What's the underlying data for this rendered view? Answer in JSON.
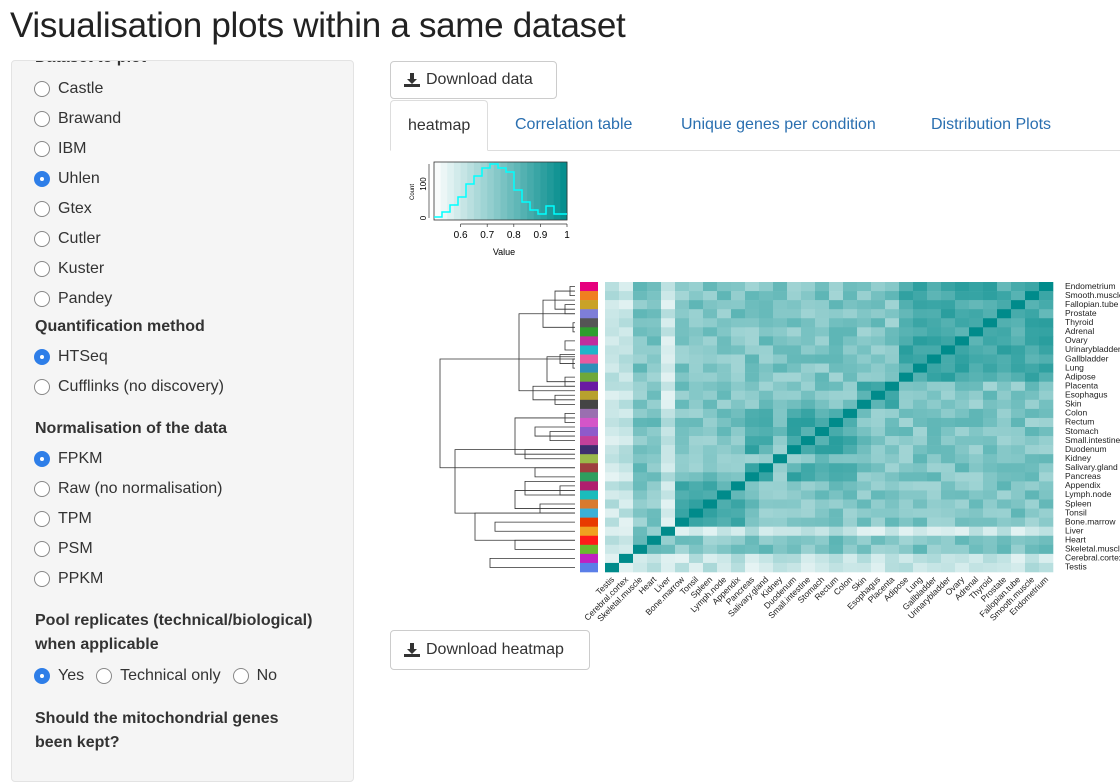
{
  "page": {
    "title": "Visualisation plots within a same dataset"
  },
  "sidebar": {
    "dataset_label": "Dataset to plot",
    "datasets": [
      {
        "label": "Castle",
        "selected": false
      },
      {
        "label": "Brawand",
        "selected": false
      },
      {
        "label": "IBM",
        "selected": false
      },
      {
        "label": "Uhlen",
        "selected": true
      },
      {
        "label": "Gtex",
        "selected": false
      },
      {
        "label": "Cutler",
        "selected": false
      },
      {
        "label": "Kuster",
        "selected": false
      },
      {
        "label": "Pandey",
        "selected": false
      }
    ],
    "quant_label": "Quantification method",
    "quant_options": [
      {
        "label": "HTSeq",
        "selected": true
      },
      {
        "label": "Cufflinks (no discovery)",
        "selected": false
      }
    ],
    "norm_label": "Normalisation of the data",
    "norm_options": [
      {
        "label": "FPKM",
        "selected": true
      },
      {
        "label": "Raw (no normalisation)",
        "selected": false
      },
      {
        "label": "TPM",
        "selected": false
      },
      {
        "label": "PSM",
        "selected": false
      },
      {
        "label": "PPKM",
        "selected": false
      }
    ],
    "pool_label_1": "Pool replicates (technical/biological)",
    "pool_label_2": "when applicable",
    "pool_options": [
      {
        "label": "Yes",
        "selected": true
      },
      {
        "label": "Technical only",
        "selected": false
      },
      {
        "label": "No",
        "selected": false
      }
    ],
    "mito_label_1": "Should the mitochondrial genes",
    "mito_label_2": "been kept?"
  },
  "toolbar": {
    "download_data": "Download data",
    "download_heatmap": "Download heatmap"
  },
  "tabs": [
    {
      "label": "heatmap",
      "active": true
    },
    {
      "label": "Correlation table",
      "active": false
    },
    {
      "label": "Unique genes per condition",
      "active": false
    },
    {
      "label": "Distribution Plots",
      "active": false
    }
  ],
  "colors": {
    "accent": "#2e7ee8",
    "heat_low": "#ffffff",
    "heat_high": "#008b8b",
    "histogram": "#00ffff",
    "link": "#2a6fb0"
  },
  "chart_data": {
    "type": "heatmap",
    "key": {
      "ylabel": "Count",
      "xlabel": "Value",
      "yticks": [
        "0",
        "100"
      ],
      "xticks": [
        "0.6",
        "0.7",
        "0.8",
        "0.9",
        "1"
      ],
      "color_range": [
        0.5,
        1.0
      ]
    },
    "row_labels": [
      "Endometrium",
      "Smooth.muscle",
      "Fallopian.tube",
      "Prostate",
      "Thyroid",
      "Adrenal",
      "Ovary",
      "Urinarybladder",
      "Gallbladder",
      "Lung",
      "Adipose",
      "Placenta",
      "Esophagus",
      "Skin",
      "Colon",
      "Rectum",
      "Stomach",
      "Small.intestine",
      "Duodenum",
      "Kidney",
      "Salivary.gland",
      "Pancreas",
      "Appendix",
      "Lymph.node",
      "Spleen",
      "Tonsil",
      "Bone.marrow",
      "Liver",
      "Heart",
      "Skeletal.muscle",
      "Cerebral.cortex",
      "Testis"
    ],
    "col_labels": [
      "Testis",
      "Cerebral.cortex",
      "Skeletal.muscle",
      "Heart",
      "Liver",
      "Bone.marrow",
      "Tonsil",
      "Spleen",
      "Lymph.node",
      "Appendix",
      "Pancreas",
      "Salivary.gland",
      "Kidney",
      "Duodenum",
      "Small.intestine",
      "Stomach",
      "Rectum",
      "Colon",
      "Skin",
      "Esophagus",
      "Placenta",
      "Adipose",
      "Lung",
      "Gallbladder",
      "Urinarybladder",
      "Ovary",
      "Adrenal",
      "Thyroid",
      "Prostate",
      "Fallopian.tube",
      "Smooth.muscle",
      "Endometrium"
    ],
    "row_colors": [
      "#e6007e",
      "#f07f1f",
      "#c9a227",
      "#7e7ed8",
      "#555555",
      "#2e9e2e",
      "#c02e9e",
      "#1fb5c9",
      "#e85aa0",
      "#2e8fb8",
      "#6ea83a",
      "#6a1aa3",
      "#b8a12e",
      "#444444",
      "#9a6fb0",
      "#d455c8",
      "#8f5acb",
      "#c4409a",
      "#3e2e6e",
      "#9ab84a",
      "#9e3e3e",
      "#2e9e5e",
      "#b01e6e",
      "#1abcbc",
      "#d97a2e",
      "#3ab0d8",
      "#e83a00",
      "#f0a020",
      "#ff1a1a",
      "#6ab82e",
      "#c020c0",
      "#5a7ee8"
    ],
    "value_range": [
      0.5,
      1.0
    ]
  }
}
